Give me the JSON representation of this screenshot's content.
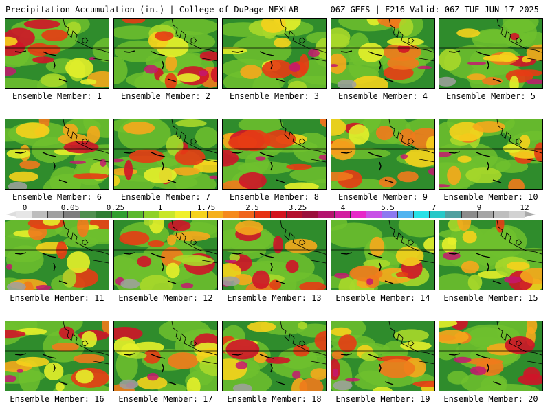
{
  "header": {
    "title_left": "Precipitation Accumulation (in.) | College of DuPage NEXLAB",
    "title_right": "06Z GEFS | F216 Valid: 06Z TUE JUN 17 2025"
  },
  "members": [
    {
      "label": "Ensemble Member: 1"
    },
    {
      "label": "Ensemble Member: 2"
    },
    {
      "label": "Ensemble Member: 3"
    },
    {
      "label": "Ensemble Member: 4"
    },
    {
      "label": "Ensemble Member: 5"
    },
    {
      "label": "Ensemble Member: 6"
    },
    {
      "label": "Ensemble Member: 7"
    },
    {
      "label": "Ensemble Member: 8"
    },
    {
      "label": "Ensemble Member: 9"
    },
    {
      "label": "Ensemble Member: 10"
    },
    {
      "label": "Ensemble Member: 11"
    },
    {
      "label": "Ensemble Member: 12"
    },
    {
      "label": "Ensemble Member: 13"
    },
    {
      "label": "Ensemble Member: 14"
    },
    {
      "label": "Ensemble Member: 15"
    },
    {
      "label": "Ensemble Member: 16"
    },
    {
      "label": "Ensemble Member: 17"
    },
    {
      "label": "Ensemble Member: 18"
    },
    {
      "label": "Ensemble Member: 19"
    },
    {
      "label": "Ensemble Member: 20"
    }
  ],
  "colorbar": {
    "tick_labels": [
      "0",
      "0.05",
      "0.25",
      "1",
      "1.75",
      "2.5",
      "3.25",
      "4",
      "5.5",
      "7",
      "9",
      "12"
    ],
    "colors": [
      "#e6e6e6",
      "#bdbdbd",
      "#a0a0a0",
      "#7d7d7d",
      "#4f8f4f",
      "#2e7d32",
      "#2f9e2f",
      "#5cb82e",
      "#8fd12a",
      "#c8e62b",
      "#f0f02a",
      "#f5d21c",
      "#f5b01c",
      "#f58a1c",
      "#f0641c",
      "#e63214",
      "#d2141e",
      "#b40f2d",
      "#9b0f3c",
      "#b4146e",
      "#d21ea0",
      "#e628c8",
      "#c850e6",
      "#8c78f0",
      "#50b4f0",
      "#28e1e6",
      "#28c8c8",
      "#50a0a0",
      "#8c8c8c",
      "#a5a5a5",
      "#bebebe",
      "#d2d2d2"
    ]
  }
}
